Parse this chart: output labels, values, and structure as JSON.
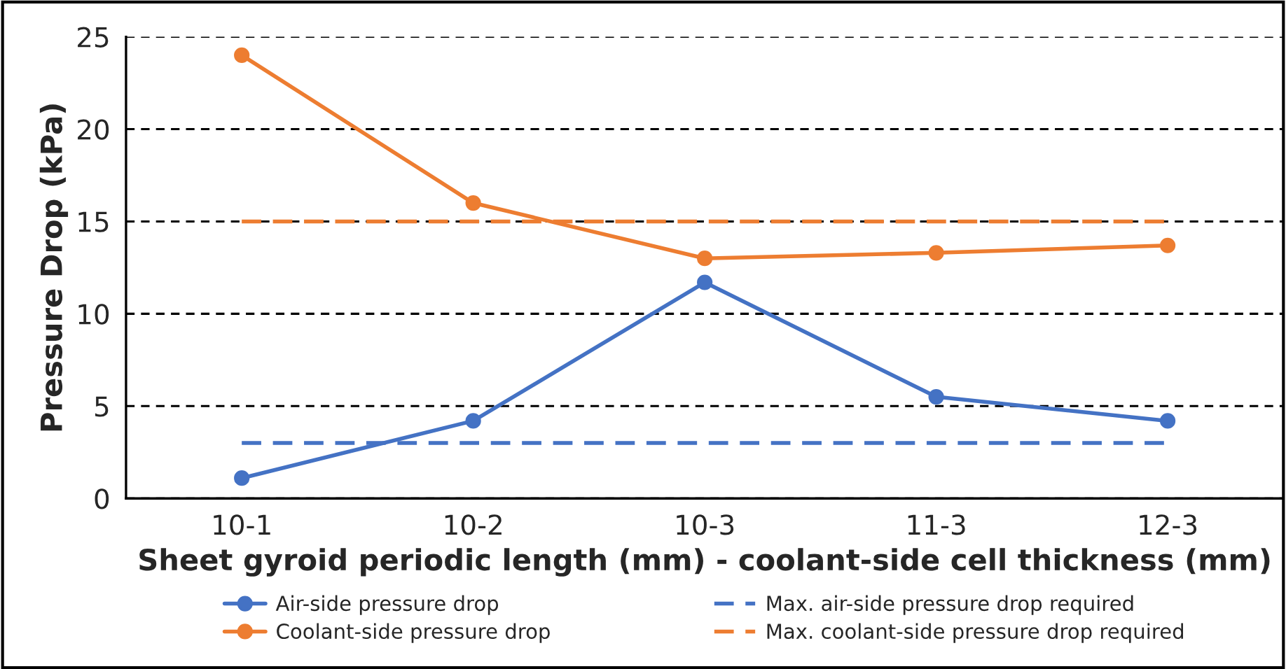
{
  "chart_data": {
    "type": "line",
    "xlabel": "Sheet gyroid periodic length (mm) - coolant-side cell thickness (mm)",
    "ylabel": "Pressure Drop (kPa)",
    "categories": [
      "10-1",
      "10-2",
      "10-3",
      "11-3",
      "12-3"
    ],
    "series": [
      {
        "name": "Air-side pressure drop",
        "color": "#4472c4",
        "values": [
          1.1,
          4.2,
          11.7,
          5.5,
          4.2
        ],
        "marker": "circle",
        "line_style": "solid"
      },
      {
        "name": "Coolant-side pressure drop",
        "color": "#ed7d31",
        "values": [
          24.0,
          16.0,
          13.0,
          13.3,
          13.7
        ],
        "marker": "circle",
        "line_style": "solid"
      },
      {
        "name": "Max. air-side pressure drop required",
        "color": "#4472c4",
        "values": [
          3,
          3,
          3,
          3,
          3
        ],
        "marker": "none",
        "line_style": "dashed"
      },
      {
        "name": "Max. coolant-side pressure drop required",
        "color": "#ed7d31",
        "values": [
          15,
          15,
          15,
          15,
          15
        ],
        "marker": "none",
        "line_style": "dashed"
      }
    ],
    "ylim": [
      0,
      25
    ],
    "yticks": [
      0,
      5,
      10,
      15,
      20,
      25
    ],
    "grid": "y",
    "legend": "bottom"
  }
}
